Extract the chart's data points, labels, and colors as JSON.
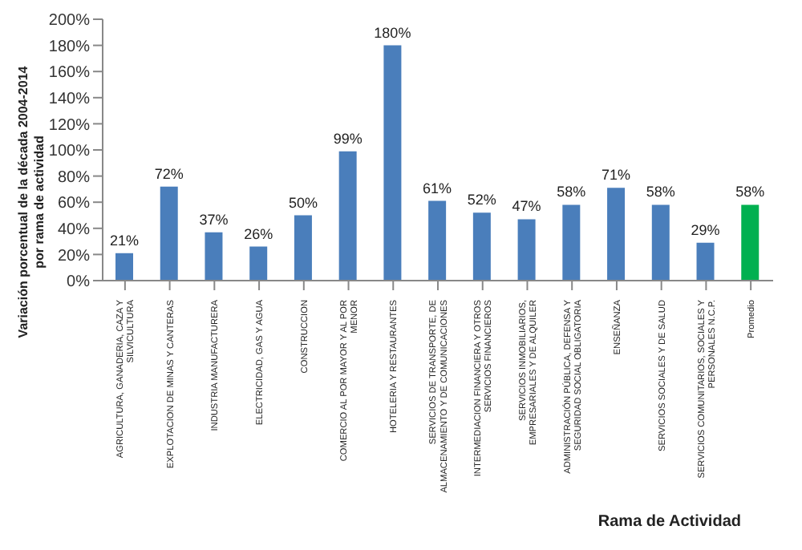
{
  "chart_data": {
    "type": "bar",
    "ylabel": "Variación porcentual de la década 2004-2014 por rama de actividad",
    "xlabel": "Rama de Actividad",
    "categories": [
      "AGRICULTURA, GANADERIA, CAZA Y SILVICULTURA",
      "EXPLOTACION DE MINAS Y CANTERAS",
      "INDUSTRIA MANUFACTURERA",
      "ELECTRICIDAD, GAS Y AGUA",
      "CONSTRUCCION",
      "COMERCIO AL POR MAYOR Y AL POR MENOR",
      "HOTELERIA Y RESTAURANTES",
      "SERVICIOS DE TRANSPORTE, DE ALMACENAMIENTO Y DE COMUNICACIONES",
      "INTERMEDIACION FINANCIERA Y OTROS SERVICIOS FINANCIEROS",
      "SERVICIOS INMOBILIARIOS, EMPRESARIALES Y DE ALQUILER",
      "ADMINISTRACIÓN PÚBLICA, DEFENSA Y SEGURIDAD SOCIAL OBLIGATORIA",
      "ENSEÑANZA",
      "SERVICIOS SOCIALES Y DE SALUD",
      "SERVICIOS COMUNITARIOS, SOCIALES Y PERSONALES N.C.P.",
      "Promedio"
    ],
    "values": [
      21,
      72,
      37,
      26,
      50,
      99,
      180,
      61,
      52,
      47,
      58,
      71,
      58,
      29,
      58
    ],
    "value_labels": [
      "21%",
      "72%",
      "37%",
      "26%",
      "50%",
      "99%",
      "180%",
      "61%",
      "52%",
      "47%",
      "58%",
      "71%",
      "58%",
      "29%",
      "58%"
    ],
    "colors": [
      "#4a7ebb",
      "#4a7ebb",
      "#4a7ebb",
      "#4a7ebb",
      "#4a7ebb",
      "#4a7ebb",
      "#4a7ebb",
      "#4a7ebb",
      "#4a7ebb",
      "#4a7ebb",
      "#4a7ebb",
      "#4a7ebb",
      "#4a7ebb",
      "#4a7ebb",
      "#00b050"
    ],
    "ylim": [
      0,
      200
    ],
    "yticks": [
      {
        "value": 0,
        "label": "0%"
      },
      {
        "value": 20,
        "label": "20%"
      },
      {
        "value": 40,
        "label": "40%"
      },
      {
        "value": 60,
        "label": "60%"
      },
      {
        "value": 80,
        "label": "80%"
      },
      {
        "value": 100,
        "label": "100%"
      },
      {
        "value": 120,
        "label": "120%"
      },
      {
        "value": 140,
        "label": "140%"
      },
      {
        "value": 160,
        "label": "160%"
      },
      {
        "value": 180,
        "label": "180%"
      },
      {
        "value": 200,
        "label": "200%"
      }
    ],
    "grid": false,
    "legend": false
  }
}
